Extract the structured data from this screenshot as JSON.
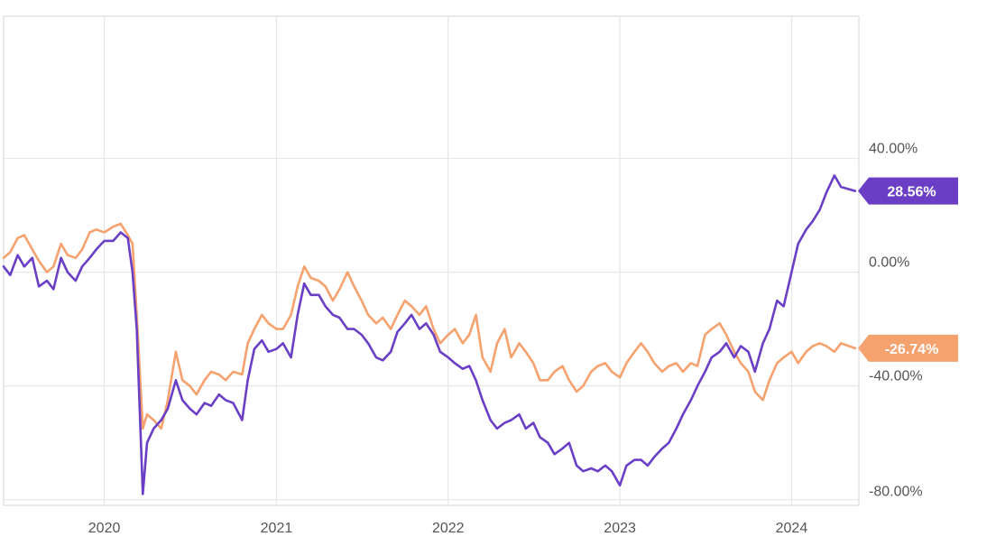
{
  "chart_data": {
    "type": "line",
    "title": "",
    "xlabel": "",
    "ylabel": "",
    "x_ticks": [
      "2020",
      "2021",
      "2022",
      "2023",
      "2024"
    ],
    "y_ticks": [
      "40.00%",
      "0.00%",
      "-40.00%",
      "-80.00%"
    ],
    "ylim": [
      -80,
      80
    ],
    "grid": true,
    "series": [
      {
        "color": "#6a3fc6",
        "end_label": "28.56%",
        "points": [
          [
            "2019-06-01",
            2
          ],
          [
            "2019-06-15",
            -1
          ],
          [
            "2019-07-01",
            6
          ],
          [
            "2019-07-15",
            2
          ],
          [
            "2019-08-01",
            5
          ],
          [
            "2019-08-15",
            -5
          ],
          [
            "2019-09-01",
            -3
          ],
          [
            "2019-09-15",
            -6
          ],
          [
            "2019-10-01",
            5
          ],
          [
            "2019-10-15",
            0
          ],
          [
            "2019-11-01",
            -3
          ],
          [
            "2019-11-15",
            2
          ],
          [
            "2019-12-01",
            5
          ],
          [
            "2019-12-15",
            8
          ],
          [
            "2020-01-01",
            11
          ],
          [
            "2020-01-20",
            11
          ],
          [
            "2020-02-05",
            14
          ],
          [
            "2020-02-20",
            12
          ],
          [
            "2020-03-01",
            0
          ],
          [
            "2020-03-10",
            -20
          ],
          [
            "2020-03-23",
            -78
          ],
          [
            "2020-04-01",
            -60
          ],
          [
            "2020-04-15",
            -55
          ],
          [
            "2020-05-01",
            -52
          ],
          [
            "2020-05-15",
            -48
          ],
          [
            "2020-06-01",
            -38
          ],
          [
            "2020-06-15",
            -45
          ],
          [
            "2020-07-01",
            -48
          ],
          [
            "2020-07-15",
            -50
          ],
          [
            "2020-08-01",
            -46
          ],
          [
            "2020-08-15",
            -47
          ],
          [
            "2020-09-01",
            -43
          ],
          [
            "2020-09-15",
            -45
          ],
          [
            "2020-10-01",
            -46
          ],
          [
            "2020-10-20",
            -52
          ],
          [
            "2020-11-01",
            -38
          ],
          [
            "2020-11-15",
            -27
          ],
          [
            "2020-12-01",
            -24
          ],
          [
            "2020-12-15",
            -28
          ],
          [
            "2021-01-01",
            -27
          ],
          [
            "2021-01-15",
            -25
          ],
          [
            "2021-02-01",
            -30
          ],
          [
            "2021-02-15",
            -15
          ],
          [
            "2021-03-01",
            -4
          ],
          [
            "2021-03-15",
            -8
          ],
          [
            "2021-04-01",
            -8
          ],
          [
            "2021-04-15",
            -12
          ],
          [
            "2021-05-01",
            -15
          ],
          [
            "2021-05-15",
            -16
          ],
          [
            "2021-06-01",
            -20
          ],
          [
            "2021-06-15",
            -20
          ],
          [
            "2021-07-01",
            -22
          ],
          [
            "2021-07-15",
            -25
          ],
          [
            "2021-08-01",
            -30
          ],
          [
            "2021-08-15",
            -31
          ],
          [
            "2021-09-01",
            -28
          ],
          [
            "2021-09-15",
            -21
          ],
          [
            "2021-10-01",
            -18
          ],
          [
            "2021-10-15",
            -15
          ],
          [
            "2021-11-01",
            -20
          ],
          [
            "2021-11-15",
            -18
          ],
          [
            "2021-12-01",
            -22
          ],
          [
            "2021-12-15",
            -28
          ],
          [
            "2022-01-01",
            -30
          ],
          [
            "2022-01-15",
            -32
          ],
          [
            "2022-02-01",
            -34
          ],
          [
            "2022-02-15",
            -33
          ],
          [
            "2022-03-01",
            -38
          ],
          [
            "2022-03-15",
            -45
          ],
          [
            "2022-04-01",
            -52
          ],
          [
            "2022-04-15",
            -55
          ],
          [
            "2022-05-01",
            -53
          ],
          [
            "2022-05-15",
            -52
          ],
          [
            "2022-06-01",
            -50
          ],
          [
            "2022-06-15",
            -55
          ],
          [
            "2022-07-01",
            -53
          ],
          [
            "2022-07-15",
            -58
          ],
          [
            "2022-08-01",
            -60
          ],
          [
            "2022-08-15",
            -64
          ],
          [
            "2022-09-01",
            -62
          ],
          [
            "2022-09-15",
            -60
          ],
          [
            "2022-10-01",
            -68
          ],
          [
            "2022-10-15",
            -70
          ],
          [
            "2022-11-01",
            -69
          ],
          [
            "2022-11-15",
            -70
          ],
          [
            "2022-12-01",
            -68
          ],
          [
            "2022-12-15",
            -70
          ],
          [
            "2023-01-01",
            -75
          ],
          [
            "2023-01-15",
            -68
          ],
          [
            "2023-02-01",
            -66
          ],
          [
            "2023-02-15",
            -66
          ],
          [
            "2023-03-01",
            -68
          ],
          [
            "2023-03-15",
            -65
          ],
          [
            "2023-04-01",
            -62
          ],
          [
            "2023-04-15",
            -60
          ],
          [
            "2023-05-01",
            -55
          ],
          [
            "2023-05-15",
            -50
          ],
          [
            "2023-06-01",
            -45
          ],
          [
            "2023-06-15",
            -40
          ],
          [
            "2023-07-01",
            -35
          ],
          [
            "2023-07-15",
            -30
          ],
          [
            "2023-08-01",
            -28
          ],
          [
            "2023-08-15",
            -25
          ],
          [
            "2023-09-01",
            -30
          ],
          [
            "2023-09-15",
            -26
          ],
          [
            "2023-10-01",
            -28
          ],
          [
            "2023-10-15",
            -35
          ],
          [
            "2023-11-01",
            -25
          ],
          [
            "2023-11-15",
            -20
          ],
          [
            "2023-12-01",
            -10
          ],
          [
            "2023-12-15",
            -12
          ],
          [
            "2024-01-01",
            0
          ],
          [
            "2024-01-15",
            10
          ],
          [
            "2024-02-01",
            15
          ],
          [
            "2024-02-15",
            18
          ],
          [
            "2024-03-01",
            22
          ],
          [
            "2024-03-15",
            28
          ],
          [
            "2024-04-01",
            34
          ],
          [
            "2024-04-15",
            30
          ],
          [
            "2024-05-15",
            28.56
          ]
        ]
      },
      {
        "color": "#f6a26f",
        "end_label": "-26.74%",
        "points": [
          [
            "2019-06-01",
            5
          ],
          [
            "2019-06-15",
            7
          ],
          [
            "2019-07-01",
            12
          ],
          [
            "2019-07-15",
            13
          ],
          [
            "2019-08-01",
            8
          ],
          [
            "2019-08-15",
            4
          ],
          [
            "2019-09-01",
            0
          ],
          [
            "2019-09-15",
            2
          ],
          [
            "2019-10-01",
            10
          ],
          [
            "2019-10-15",
            6
          ],
          [
            "2019-11-01",
            5
          ],
          [
            "2019-11-15",
            8
          ],
          [
            "2019-12-01",
            14
          ],
          [
            "2019-12-15",
            15
          ],
          [
            "2020-01-01",
            14
          ],
          [
            "2020-01-20",
            16
          ],
          [
            "2020-02-05",
            17
          ],
          [
            "2020-02-20",
            13
          ],
          [
            "2020-03-01",
            10
          ],
          [
            "2020-03-10",
            -15
          ],
          [
            "2020-03-23",
            -55
          ],
          [
            "2020-04-01",
            -50
          ],
          [
            "2020-04-15",
            -52
          ],
          [
            "2020-05-01",
            -55
          ],
          [
            "2020-05-15",
            -45
          ],
          [
            "2020-06-01",
            -28
          ],
          [
            "2020-06-15",
            -38
          ],
          [
            "2020-07-01",
            -40
          ],
          [
            "2020-07-15",
            -43
          ],
          [
            "2020-08-01",
            -38
          ],
          [
            "2020-08-15",
            -35
          ],
          [
            "2020-09-01",
            -36
          ],
          [
            "2020-09-15",
            -38
          ],
          [
            "2020-10-01",
            -35
          ],
          [
            "2020-10-20",
            -36
          ],
          [
            "2020-11-01",
            -25
          ],
          [
            "2020-11-15",
            -20
          ],
          [
            "2020-12-01",
            -15
          ],
          [
            "2020-12-15",
            -18
          ],
          [
            "2021-01-01",
            -20
          ],
          [
            "2021-01-15",
            -20
          ],
          [
            "2021-02-01",
            -15
          ],
          [
            "2021-02-15",
            -5
          ],
          [
            "2021-03-01",
            2
          ],
          [
            "2021-03-15",
            -2
          ],
          [
            "2021-04-01",
            -3
          ],
          [
            "2021-04-15",
            -5
          ],
          [
            "2021-05-01",
            -10
          ],
          [
            "2021-05-15",
            -6
          ],
          [
            "2021-06-01",
            0
          ],
          [
            "2021-06-15",
            -5
          ],
          [
            "2021-07-01",
            -10
          ],
          [
            "2021-07-15",
            -15
          ],
          [
            "2021-08-01",
            -18
          ],
          [
            "2021-08-15",
            -16
          ],
          [
            "2021-09-01",
            -20
          ],
          [
            "2021-09-15",
            -15
          ],
          [
            "2021-10-01",
            -10
          ],
          [
            "2021-10-15",
            -12
          ],
          [
            "2021-11-01",
            -15
          ],
          [
            "2021-11-15",
            -12
          ],
          [
            "2021-12-01",
            -20
          ],
          [
            "2021-12-15",
            -25
          ],
          [
            "2022-01-01",
            -22
          ],
          [
            "2022-01-15",
            -20
          ],
          [
            "2022-02-01",
            -25
          ],
          [
            "2022-02-15",
            -22
          ],
          [
            "2022-03-01",
            -15
          ],
          [
            "2022-03-15",
            -30
          ],
          [
            "2022-04-01",
            -35
          ],
          [
            "2022-04-15",
            -25
          ],
          [
            "2022-05-01",
            -20
          ],
          [
            "2022-05-15",
            -30
          ],
          [
            "2022-06-01",
            -25
          ],
          [
            "2022-06-15",
            -28
          ],
          [
            "2022-07-01",
            -32
          ],
          [
            "2022-07-15",
            -38
          ],
          [
            "2022-08-01",
            -38
          ],
          [
            "2022-08-15",
            -35
          ],
          [
            "2022-09-01",
            -33
          ],
          [
            "2022-09-15",
            -38
          ],
          [
            "2022-10-01",
            -42
          ],
          [
            "2022-10-15",
            -40
          ],
          [
            "2022-11-01",
            -35
          ],
          [
            "2022-11-15",
            -33
          ],
          [
            "2022-12-01",
            -32
          ],
          [
            "2022-12-15",
            -35
          ],
          [
            "2023-01-01",
            -37
          ],
          [
            "2023-01-15",
            -32
          ],
          [
            "2023-02-01",
            -28
          ],
          [
            "2023-02-15",
            -25
          ],
          [
            "2023-03-01",
            -28
          ],
          [
            "2023-03-15",
            -32
          ],
          [
            "2023-04-01",
            -35
          ],
          [
            "2023-04-15",
            -33
          ],
          [
            "2023-05-01",
            -32
          ],
          [
            "2023-05-15",
            -35
          ],
          [
            "2023-06-01",
            -32
          ],
          [
            "2023-06-15",
            -33
          ],
          [
            "2023-07-01",
            -22
          ],
          [
            "2023-07-15",
            -20
          ],
          [
            "2023-08-01",
            -18
          ],
          [
            "2023-08-15",
            -22
          ],
          [
            "2023-09-01",
            -28
          ],
          [
            "2023-09-15",
            -32
          ],
          [
            "2023-10-01",
            -35
          ],
          [
            "2023-10-15",
            -42
          ],
          [
            "2023-11-01",
            -45
          ],
          [
            "2023-11-15",
            -38
          ],
          [
            "2023-12-01",
            -32
          ],
          [
            "2023-12-15",
            -30
          ],
          [
            "2024-01-01",
            -28
          ],
          [
            "2024-01-15",
            -32
          ],
          [
            "2024-02-01",
            -28
          ],
          [
            "2024-02-15",
            -26
          ],
          [
            "2024-03-01",
            -25
          ],
          [
            "2024-03-15",
            -26
          ],
          [
            "2024-04-01",
            -28
          ],
          [
            "2024-04-15",
            -25
          ],
          [
            "2024-05-15",
            -26.74
          ]
        ]
      }
    ]
  }
}
